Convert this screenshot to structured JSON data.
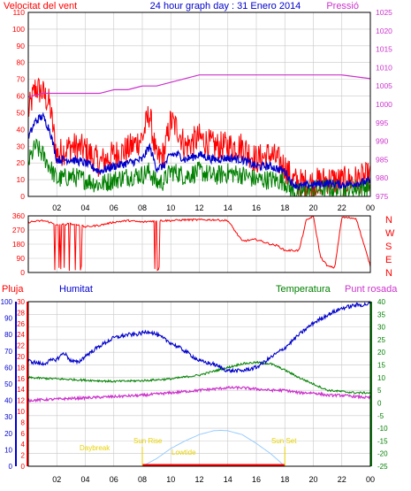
{
  "header": {
    "left_title": "Velocitat del vent",
    "center_title": "24 hour graph day : 31 Enero 2014",
    "right_title": "Pressió"
  },
  "colors": {
    "wind": "#ff0000",
    "avg": "#0000cc",
    "gust": "#008000",
    "pressure": "#cc33cc",
    "direction": "#ff0000",
    "humidity": "#0000cc",
    "temperature": "#008000",
    "dewpoint": "#cc33cc",
    "sun": "#99ccff",
    "label_yellow": "#e8d200",
    "grid": "#c8c8c8",
    "frame": "#000000"
  },
  "chart_data": [
    {
      "type": "line",
      "title": "24 hour graph day : 31 Enero 2014",
      "ylabel": "Velocitat del vent",
      "y2label": "Pressió",
      "x_ticks": [
        "02",
        "04",
        "06",
        "08",
        "10",
        "12",
        "14",
        "16",
        "18",
        "20",
        "22",
        "00"
      ],
      "ylim": [
        0,
        110
      ],
      "y_ticks": [
        0,
        10,
        20,
        30,
        40,
        50,
        60,
        70,
        80,
        90,
        100,
        110
      ],
      "y2lim": [
        975,
        1025
      ],
      "y2_ticks": [
        975,
        980,
        985,
        990,
        995,
        1000,
        1005,
        1010,
        1015,
        1020,
        1025
      ],
      "series": [
        {
          "key": "wind_max",
          "hours": [
            0,
            0.5,
            1,
            1.5,
            2,
            3,
            4,
            5,
            6,
            7,
            8,
            8.5,
            9,
            9.5,
            10,
            10.5,
            11,
            12,
            13,
            14,
            15,
            16,
            17,
            18,
            18.5,
            19,
            20,
            21,
            22,
            23,
            24
          ],
          "values": [
            50,
            65,
            62,
            55,
            25,
            30,
            28,
            20,
            25,
            28,
            35,
            50,
            22,
            25,
            45,
            40,
            30,
            35,
            30,
            30,
            30,
            22,
            25,
            18,
            10,
            8,
            8,
            10,
            9,
            10,
            12
          ]
        },
        {
          "key": "wind_avg",
          "hours": [
            0,
            0.5,
            1,
            1.5,
            2,
            3,
            4,
            5,
            6,
            7,
            8,
            8.5,
            9,
            9.5,
            10,
            10.5,
            11,
            12,
            13,
            14,
            15,
            16,
            17,
            18,
            18.5,
            19,
            20,
            21,
            22,
            23,
            24
          ],
          "values": [
            35,
            45,
            48,
            40,
            22,
            22,
            20,
            15,
            18,
            20,
            22,
            30,
            17,
            18,
            25,
            25,
            22,
            25,
            22,
            23,
            22,
            18,
            18,
            15,
            8,
            6,
            7,
            8,
            7,
            8,
            9
          ]
        },
        {
          "key": "wind_green",
          "hours": [
            0,
            0.5,
            1,
            1.5,
            2,
            3,
            4,
            5,
            6,
            7,
            8,
            8.5,
            9,
            9.5,
            10,
            10.5,
            11,
            12,
            13,
            14,
            15,
            16,
            17,
            18,
            18.5,
            19,
            20,
            21,
            22,
            23,
            24
          ],
          "values": [
            20,
            30,
            25,
            18,
            10,
            12,
            10,
            7,
            10,
            12,
            13,
            15,
            8,
            9,
            15,
            14,
            12,
            15,
            12,
            14,
            13,
            10,
            10,
            9,
            3,
            2,
            4,
            5,
            4,
            5,
            6
          ]
        },
        {
          "key": "pressure",
          "hours": [
            0,
            1,
            2,
            3,
            4,
            5,
            6,
            7,
            8,
            9,
            10,
            11,
            12,
            13,
            14,
            15,
            16,
            17,
            18,
            19,
            20,
            21,
            22,
            23,
            24
          ],
          "values": [
            1002,
            1003,
            1003,
            1003,
            1003,
            1003,
            1004,
            1004,
            1005,
            1005,
            1006,
            1007,
            1008,
            1008,
            1008,
            1008,
            1008,
            1008,
            1008,
            1008,
            1008,
            1008,
            1008,
            1007.5,
            1007
          ]
        }
      ]
    },
    {
      "type": "line",
      "ylabel": "Direction",
      "y_ticks": [
        0,
        90,
        180,
        270,
        360
      ],
      "ylim": [
        0,
        360
      ],
      "compass_labels": [
        "N",
        "W",
        "S",
        "E",
        "N"
      ],
      "series": [
        {
          "key": "direction",
          "hours": [
            0,
            1,
            1.5,
            2,
            3,
            4,
            5,
            6,
            7,
            8,
            9,
            10,
            11,
            12,
            13,
            14,
            15,
            16,
            17,
            17.5,
            18,
            19,
            19.5,
            20,
            20.5,
            21,
            21.5,
            22,
            23,
            24
          ],
          "values": [
            320,
            330,
            320,
            300,
            310,
            290,
            300,
            320,
            330,
            320,
            330,
            330,
            335,
            335,
            335,
            330,
            200,
            210,
            180,
            170,
            140,
            140,
            330,
            360,
            100,
            40,
            30,
            350,
            345,
            40
          ]
        }
      ]
    },
    {
      "type": "line",
      "labels": {
        "rain": "Pluja",
        "humidity": "Humitat",
        "temperature": "Temperatura",
        "dewpoint": "Punt rosada"
      },
      "rain_ticks": [
        0,
        2,
        4,
        6,
        8,
        10,
        12,
        14,
        16,
        18,
        20,
        22,
        24,
        26,
        28,
        30
      ],
      "rain_lim": [
        0,
        30
      ],
      "hum_ticks": [
        0,
        10,
        20,
        30,
        40,
        50,
        60,
        70,
        80,
        90,
        100
      ],
      "hum_lim": [
        0,
        100
      ],
      "temp_ticks": [
        -25,
        -20,
        -15,
        -10,
        -5,
        0,
        5,
        10,
        15,
        20,
        25,
        30,
        35,
        40
      ],
      "temp_lim": [
        -25,
        40
      ],
      "series": [
        {
          "key": "humidity",
          "hours": [
            0,
            0.5,
            1,
            1.5,
            2,
            2.5,
            3,
            3.5,
            4,
            5,
            6,
            7,
            7.5,
            8,
            8.5,
            9,
            10,
            11,
            12,
            13,
            14,
            15,
            16,
            17,
            18,
            19,
            20,
            21,
            22,
            22.5,
            23,
            23.5,
            24
          ],
          "values": [
            64,
            63,
            62,
            64,
            65,
            69,
            64,
            63,
            67,
            73,
            78,
            80,
            80,
            81,
            82,
            80,
            75,
            70,
            64,
            62,
            58,
            58,
            60,
            66,
            72,
            80,
            87,
            92,
            96,
            97,
            98,
            98,
            99
          ]
        },
        {
          "key": "temperature",
          "hours": [
            0,
            2,
            4,
            6,
            8,
            10,
            12,
            13,
            14,
            15,
            16,
            17,
            18,
            19,
            20,
            21,
            22,
            23,
            24
          ],
          "values": [
            10,
            9.5,
            9,
            8.5,
            8.8,
            9.5,
            11,
            12.5,
            14,
            15.5,
            16,
            15.5,
            13,
            10,
            7.5,
            5,
            4.5,
            4,
            4
          ]
        },
        {
          "key": "dewpoint",
          "hours": [
            0,
            2,
            4,
            6,
            8,
            10,
            12,
            14,
            15,
            16,
            17,
            18,
            19,
            20,
            21,
            22,
            23,
            24
          ],
          "values": [
            1,
            1.5,
            2,
            2.5,
            3,
            4,
            5,
            6,
            6,
            5.5,
            5,
            5,
            4,
            4,
            3,
            3,
            2.5,
            2
          ]
        },
        {
          "key": "sun_elevation",
          "hours": [
            8,
            9,
            10,
            11,
            12,
            13,
            13.5,
            14,
            15,
            16,
            17,
            18
          ],
          "values": [
            0,
            3,
            7,
            10,
            12.5,
            14,
            14.2,
            14,
            12.5,
            9,
            5,
            0
          ]
        }
      ],
      "annotations": {
        "daybreak": "Daybreak",
        "sunrise": "Sun Rise",
        "lowtide": "Lowtide",
        "sunset": "Sun Set"
      }
    }
  ]
}
